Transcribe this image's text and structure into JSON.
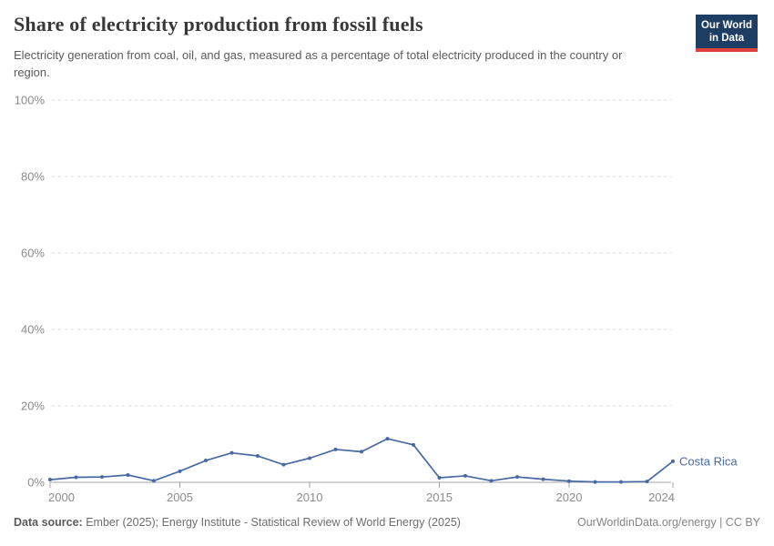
{
  "header": {
    "title": "Share of electricity production from fossil fuels",
    "subtitle": "Electricity generation from coal, oil, and gas, measured as a percentage of total electricity produced in the country or region.",
    "logo": {
      "line1": "Our World",
      "line2": "in Data",
      "bg_color": "#1d3d63",
      "accent_color": "#e0413d"
    }
  },
  "chart_data": {
    "type": "line",
    "title": "Share of electricity production from fossil fuels",
    "xlabel": "",
    "ylabel": "",
    "x": [
      2000,
      2001,
      2002,
      2003,
      2004,
      2005,
      2006,
      2007,
      2008,
      2009,
      2010,
      2011,
      2012,
      2013,
      2014,
      2015,
      2016,
      2017,
      2018,
      2019,
      2020,
      2021,
      2022,
      2023,
      2024
    ],
    "series": [
      {
        "name": "Costa Rica",
        "color": "#4969a3",
        "values": [
          0.7,
          1.3,
          1.4,
          1.9,
          0.4,
          2.9,
          5.7,
          7.7,
          6.9,
          4.6,
          6.3,
          8.6,
          8.0,
          11.4,
          9.8,
          1.2,
          1.7,
          0.4,
          1.4,
          0.8,
          0.3,
          0.1,
          0.1,
          0.2,
          5.5
        ]
      }
    ],
    "xlim": [
      2000,
      2024
    ],
    "ylim": [
      0,
      100
    ],
    "yticks": [
      0,
      20,
      40,
      60,
      80,
      100
    ],
    "ytick_suffix": "%",
    "xticks": [
      2000,
      2005,
      2010,
      2015,
      2020,
      2024
    ],
    "grid": "horizontal-dashed",
    "legend_position": "end-of-line-label",
    "grid_color": "#d9d9d9",
    "axis_color": "#a5a5a5",
    "tick_label_color": "#8c8c8c"
  },
  "footer": {
    "source_label": "Data source:",
    "source_text": " Ember (2025); Energy Institute - Statistical Review of World Energy (2025)",
    "rights": "OurWorldinData.org/energy | CC BY"
  }
}
